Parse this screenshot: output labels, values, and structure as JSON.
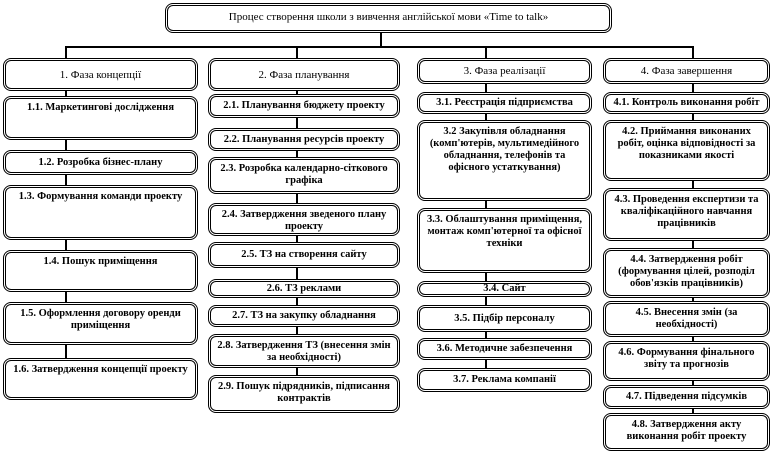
{
  "title": "Процес створення школи з вивчення англійської мови «Time to talk»",
  "phases": [
    {
      "label": "1. Фаза концепції",
      "steps": [
        "1.1. Маркетингові дослідження",
        "1.2. Розробка бізнес-плану",
        "1.3. Формування команди проекту",
        "1.4. Пошук приміщення",
        "1.5. Оформлення договору оренди приміщення",
        "1.6. Затвердження концепції проекту"
      ]
    },
    {
      "label": "2. Фаза планування",
      "steps": [
        "2.1. Планування бюджету проекту",
        "2.2. Планування ресурсів проекту",
        "2.3. Розробка календарно-сіткового графіка",
        "2.4. Затвердження зведеного плану проекту",
        "2.5. ТЗ на створення сайту",
        "2.6. ТЗ реклами",
        "2.7. ТЗ на закупку обладнання",
        "2.8. Затвердження ТЗ (внесення змін за необхідності)",
        "2.9. Пошук підрядників, підписання контрактів"
      ]
    },
    {
      "label": "3. Фаза реалізації",
      "steps": [
        "3.1. Реєстрація підприємства",
        "3.2 Закупівля обладнання (комп'ютерів, мультимедійного обладнання, телефонів та офісного устаткування)",
        "3.3. Облаштування приміщення, монтаж комп'ютерної та офісної техніки",
        "3.4. Сайт",
        "3.5. Підбір персоналу",
        "3.6. Методичне забезпечення",
        "3.7. Реклама компанії"
      ]
    },
    {
      "label": "4. Фаза завершення",
      "steps": [
        "4.1. Контроль виконання робіт",
        "4.2. Приймання виконаних робіт, оцінка відповідності за показниками якості",
        "4.3. Проведення експертизи та кваліфікаційного навчання працівників",
        "4.4. Затвердження робіт (формування цілей, розподіл обов'язків працівників)",
        "4.5. Внесення змін (за необхідності)",
        "4.6. Формування фінального звіту та прогнозів",
        "4.7. Підведення підсумків",
        "4.8. Затвердження акту виконання робіт проекту"
      ]
    }
  ]
}
